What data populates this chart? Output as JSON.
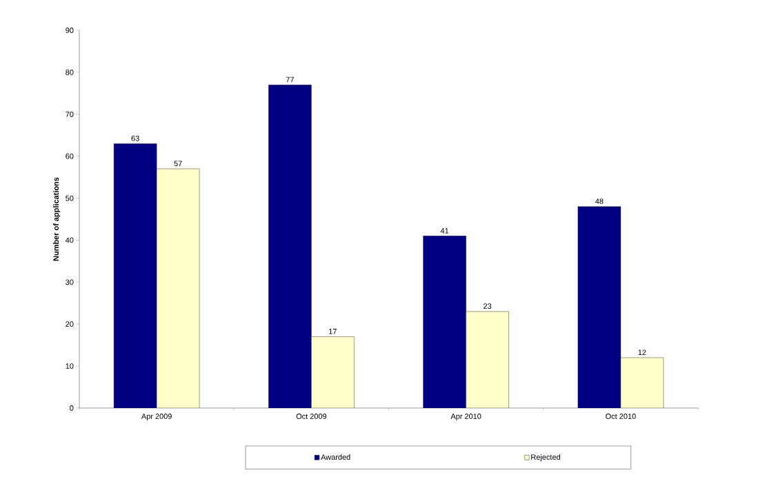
{
  "chart_data": {
    "type": "bar",
    "ylabel": "Number of applications",
    "categories": [
      "Apr 2009",
      "Oct 2009",
      "Apr 2010",
      "Oct 2010"
    ],
    "series": [
      {
        "name": "Awarded",
        "color": "#000080",
        "values": [
          63,
          77,
          41,
          48
        ]
      },
      {
        "name": "Rejected",
        "color": "#ffffcc",
        "values": [
          57,
          17,
          23,
          12
        ]
      }
    ],
    "ylim": [
      0,
      90
    ],
    "yticks": [
      0,
      10,
      20,
      30,
      40,
      50,
      60,
      70,
      80,
      90
    ],
    "data_labels": true,
    "legend": "bottom",
    "grid": false
  }
}
